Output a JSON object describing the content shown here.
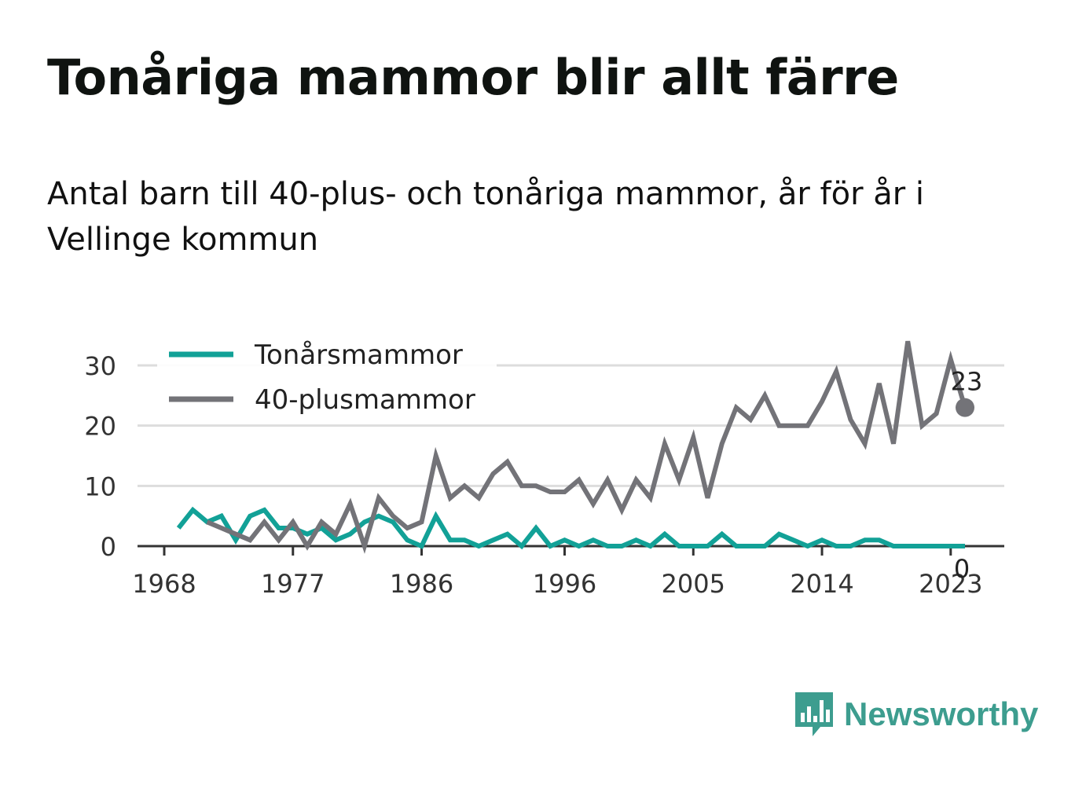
{
  "title": "Tonåriga mammor blir allt färre",
  "subtitle": "Antal barn till 40-plus- och tonåriga mammor, år för år i Vellinge kommun",
  "brand": {
    "name": "Newsworthy",
    "color": "#3d9d8f"
  },
  "chart_data": {
    "type": "line",
    "x_ticks": [
      1968,
      1977,
      1986,
      1996,
      2005,
      2014,
      2023
    ],
    "y_ticks": [
      0,
      10,
      20,
      30
    ],
    "ylim": [
      0,
      35
    ],
    "xlim": [
      1968,
      2026
    ],
    "grid": true,
    "legend": "top-left",
    "series": [
      {
        "name": "Tonårsmammor",
        "color": "#12a197",
        "x": [
          1969,
          1970,
          1971,
          1972,
          1973,
          1974,
          1975,
          1976,
          1977,
          1978,
          1979,
          1980,
          1981,
          1982,
          1983,
          1984,
          1985,
          1986,
          1987,
          1988,
          1989,
          1990,
          1991,
          1992,
          1993,
          1994,
          1995,
          1996,
          1997,
          1998,
          1999,
          2000,
          2001,
          2002,
          2003,
          2004,
          2005,
          2006,
          2007,
          2008,
          2009,
          2010,
          2011,
          2012,
          2013,
          2014,
          2015,
          2016,
          2017,
          2018,
          2019,
          2020,
          2021,
          2022,
          2023,
          2024
        ],
        "values": [
          3,
          6,
          4,
          5,
          1,
          5,
          6,
          3,
          3,
          2,
          3,
          1,
          2,
          4,
          5,
          4,
          1,
          0,
          5,
          1,
          1,
          0,
          1,
          2,
          0,
          3,
          0,
          1,
          0,
          1,
          0,
          0,
          1,
          0,
          2,
          0,
          0,
          0,
          2,
          0,
          0,
          0,
          2,
          1,
          0,
          1,
          0,
          0,
          1,
          1,
          0,
          0,
          0,
          0,
          0,
          0
        ],
        "end_label": "0"
      },
      {
        "name": "40-plusmammor",
        "color": "#737378",
        "x": [
          1971,
          1972,
          1973,
          1974,
          1975,
          1976,
          1977,
          1978,
          1979,
          1980,
          1981,
          1982,
          1983,
          1984,
          1985,
          1986,
          1987,
          1988,
          1989,
          1990,
          1991,
          1992,
          1993,
          1994,
          1995,
          1996,
          1997,
          1998,
          1999,
          2000,
          2001,
          2002,
          2003,
          2004,
          2005,
          2006,
          2007,
          2008,
          2009,
          2010,
          2011,
          2012,
          2013,
          2014,
          2015,
          2016,
          2017,
          2018,
          2019,
          2020,
          2021,
          2022,
          2023,
          2024
        ],
        "values": [
          4,
          3,
          2,
          1,
          4,
          1,
          4,
          0,
          4,
          2,
          7,
          0,
          8,
          5,
          3,
          4,
          15,
          8,
          10,
          8,
          12,
          14,
          10,
          10,
          9,
          9,
          11,
          7,
          11,
          6,
          11,
          8,
          17,
          11,
          18,
          8,
          17,
          23,
          21,
          25,
          20,
          20,
          20,
          24,
          29,
          21,
          17,
          27,
          17,
          34,
          20,
          22,
          31,
          23
        ],
        "end_label": "23"
      }
    ]
  }
}
